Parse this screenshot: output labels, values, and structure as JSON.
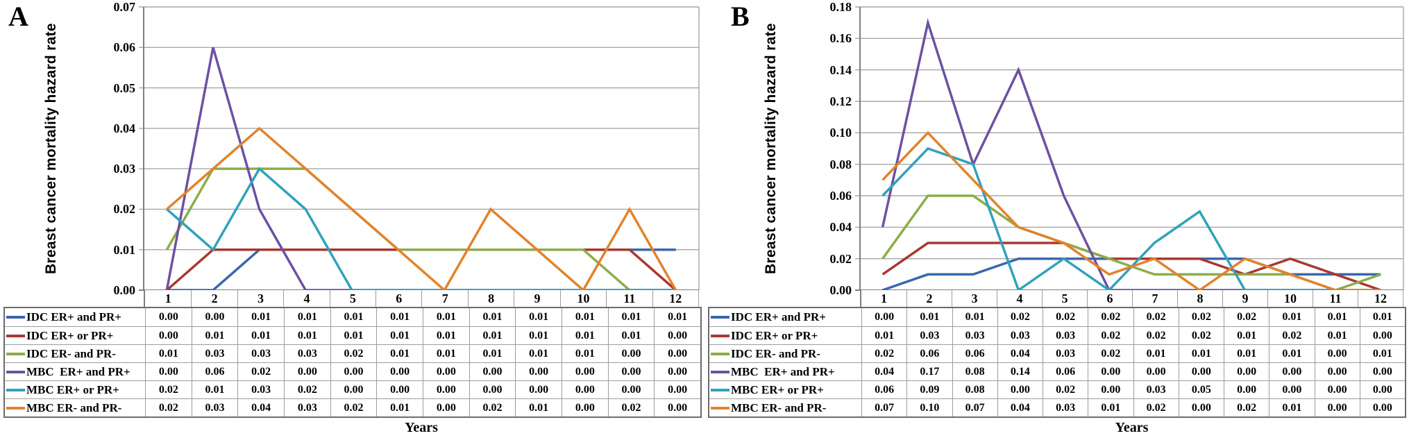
{
  "figure": {
    "y_axis_title": "Breast cancer mortality hazard rate",
    "x_axis_title": "Years",
    "grid_color": "#a6a6a6",
    "axis_color": "#7f7f7f",
    "table_border_color": "#9c9c9c"
  },
  "chart_data": [
    {
      "type": "line",
      "panel_label": "A",
      "ylabel": "Breast cancer mortality hazard rate",
      "xlabel": "Years",
      "categories": [
        1,
        2,
        3,
        4,
        5,
        6,
        7,
        8,
        9,
        10,
        11,
        12
      ],
      "ylim": [
        0,
        0.07
      ],
      "ytick_step": 0.01,
      "grid": "horizontal",
      "legend_position": "table-below-left",
      "series": [
        {
          "name": "IDC ER+ and PR+",
          "color": "#3a67ad",
          "values": [
            0.0,
            0.0,
            0.01,
            0.01,
            0.01,
            0.01,
            0.01,
            0.01,
            0.01,
            0.01,
            0.01,
            0.01
          ]
        },
        {
          "name": "IDC ER+ or PR+",
          "color": "#a93830",
          "values": [
            0.0,
            0.01,
            0.01,
            0.01,
            0.01,
            0.01,
            0.01,
            0.01,
            0.01,
            0.01,
            0.01,
            0.0
          ]
        },
        {
          "name": "IDC ER- and PR-",
          "color": "#8cad49",
          "values": [
            0.01,
            0.03,
            0.03,
            0.03,
            0.02,
            0.01,
            0.01,
            0.01,
            0.01,
            0.01,
            0.0,
            0.0
          ]
        },
        {
          "name": "MBC  ER+ and PR+",
          "color": "#6c51a3",
          "values": [
            0.0,
            0.06,
            0.02,
            0.0,
            0.0,
            0.0,
            0.0,
            0.0,
            0.0,
            0.0,
            0.0,
            0.0
          ]
        },
        {
          "name": "MBC ER+ or PR+",
          "color": "#31a2bc",
          "values": [
            0.02,
            0.01,
            0.03,
            0.02,
            0.0,
            0.0,
            0.0,
            0.0,
            0.0,
            0.0,
            0.0,
            0.0
          ]
        },
        {
          "name": "MBC ER- and PR-",
          "color": "#e3822b",
          "values": [
            0.02,
            0.03,
            0.04,
            0.03,
            0.02,
            0.01,
            0.0,
            0.02,
            0.01,
            0.0,
            0.02,
            0.0
          ]
        }
      ]
    },
    {
      "type": "line",
      "panel_label": "B",
      "ylabel": "Breast cancer mortality hazard rate",
      "xlabel": "Years",
      "categories": [
        1,
        2,
        3,
        4,
        5,
        6,
        7,
        8,
        9,
        10,
        11,
        12
      ],
      "ylim": [
        0,
        0.18
      ],
      "ytick_step": 0.02,
      "grid": "horizontal",
      "legend_position": "table-below-left",
      "series": [
        {
          "name": "IDC ER+ and PR+",
          "color": "#3a67ad",
          "values": [
            0.0,
            0.01,
            0.01,
            0.02,
            0.02,
            0.02,
            0.02,
            0.02,
            0.02,
            0.01,
            0.01,
            0.01
          ]
        },
        {
          "name": "IDC ER+ or PR+",
          "color": "#a93830",
          "values": [
            0.01,
            0.03,
            0.03,
            0.03,
            0.03,
            0.02,
            0.02,
            0.02,
            0.01,
            0.02,
            0.01,
            0.0
          ]
        },
        {
          "name": "IDC ER- and PR-",
          "color": "#8cad49",
          "values": [
            0.02,
            0.06,
            0.06,
            0.04,
            0.03,
            0.02,
            0.01,
            0.01,
            0.01,
            0.01,
            0.0,
            0.01
          ]
        },
        {
          "name": "MBC  ER+ and PR+",
          "color": "#6c51a3",
          "values": [
            0.04,
            0.17,
            0.08,
            0.14,
            0.06,
            0.0,
            0.0,
            0.0,
            0.0,
            0.0,
            0.0,
            0.0
          ]
        },
        {
          "name": "MBC ER+ or PR+",
          "color": "#31a2bc",
          "values": [
            0.06,
            0.09,
            0.08,
            0.0,
            0.02,
            0.0,
            0.03,
            0.05,
            0.0,
            0.0,
            0.0,
            0.0
          ]
        },
        {
          "name": "MBC ER- and PR-",
          "color": "#e3822b",
          "values": [
            0.07,
            0.1,
            0.07,
            0.04,
            0.03,
            0.01,
            0.02,
            0.0,
            0.02,
            0.01,
            0.0,
            0.0
          ]
        }
      ]
    }
  ]
}
